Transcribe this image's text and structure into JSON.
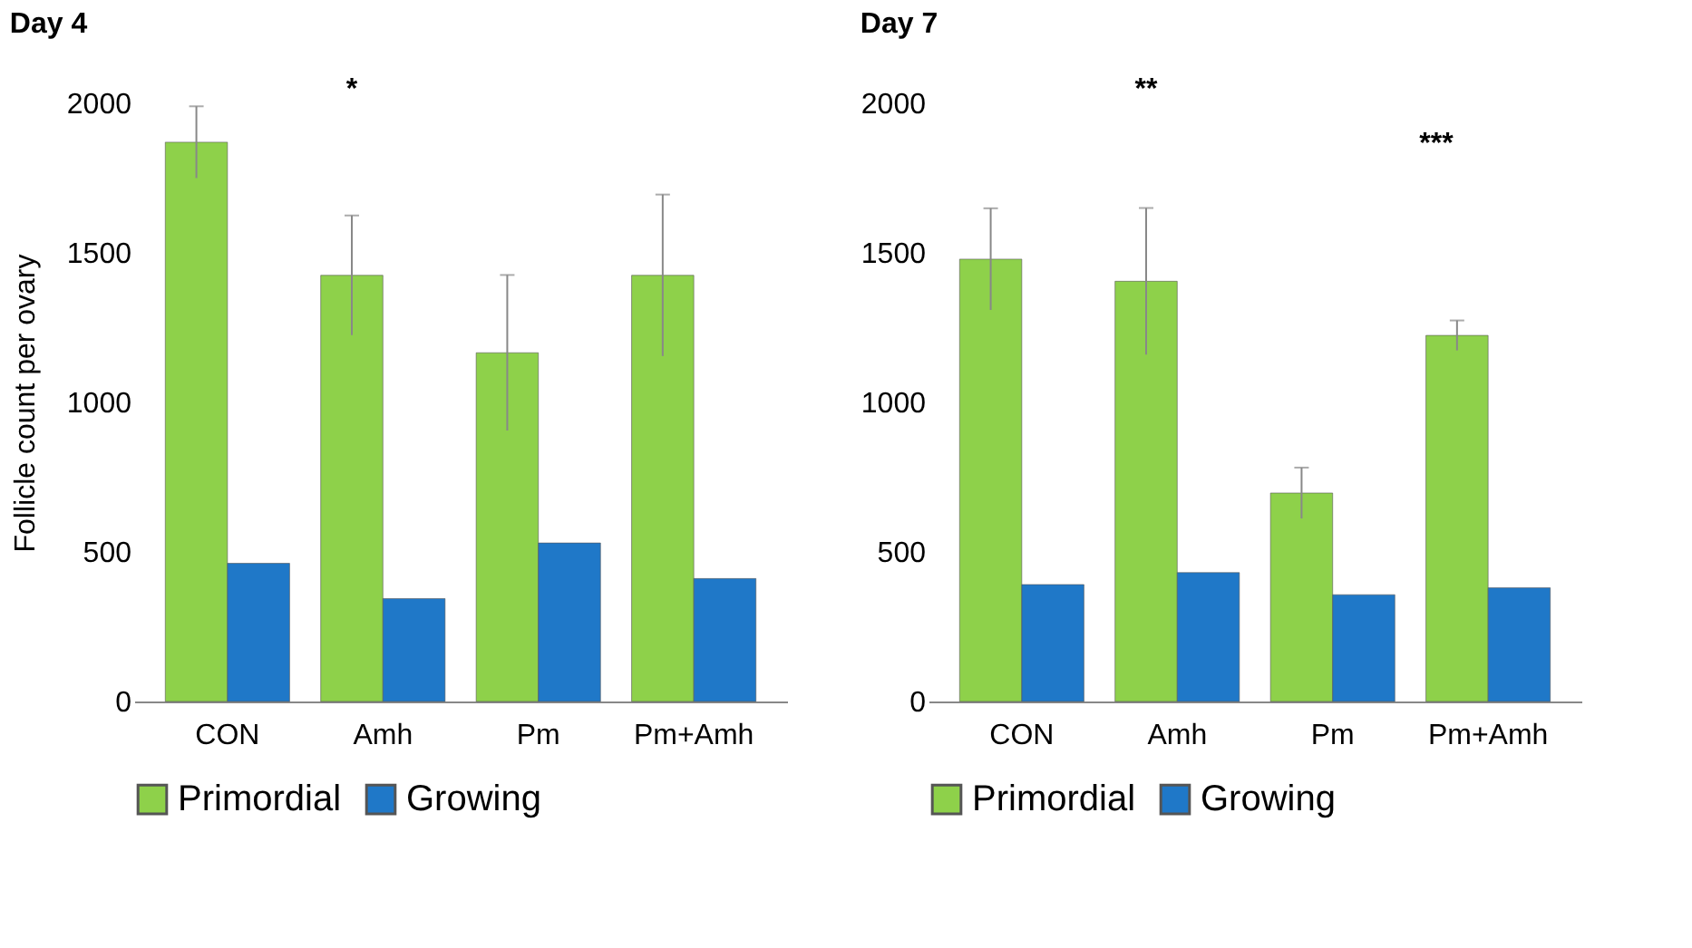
{
  "chart_data": [
    {
      "type": "bar",
      "title": "Day 4",
      "ylabel": "Follicle count per ovary",
      "categories": [
        "CON",
        "Amh",
        "Pm",
        "Pm+Amh"
      ],
      "series": [
        {
          "name": "Primordial",
          "color": "#8ed14a",
          "values": [
            1870,
            1425,
            1166,
            1425
          ],
          "errors": [
            120,
            200,
            260,
            270
          ]
        },
        {
          "name": "Growing",
          "color": "#1f78c8",
          "values": [
            462,
            344,
            530,
            411
          ]
        }
      ],
      "ylim": [
        0,
        2000
      ],
      "yticks": [
        0,
        500,
        1000,
        1500,
        2000
      ],
      "grid": false,
      "legend": "bottom",
      "annotations": [
        "*"
      ]
    },
    {
      "type": "bar",
      "title": "Day 7",
      "categories": [
        "CON",
        "Amh",
        "Pm",
        "Pm+Amh"
      ],
      "series": [
        {
          "name": "Primordial",
          "color": "#8ed14a",
          "values": [
            1479,
            1405,
            697,
            1224
          ],
          "errors": [
            170,
            245,
            85,
            50
          ]
        },
        {
          "name": "Growing",
          "color": "#1f78c8",
          "values": [
            391,
            431,
            357,
            380
          ]
        }
      ],
      "ylim": [
        0,
        2000
      ],
      "yticks": [
        0,
        500,
        1000,
        1500,
        2000
      ],
      "grid": false,
      "legend": "bottom",
      "annotations": [
        "**",
        "***"
      ]
    }
  ]
}
